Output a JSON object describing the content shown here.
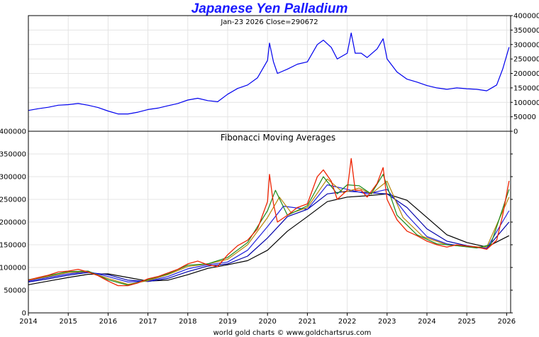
{
  "title": "Japanese Yen Palladium",
  "footer": "world gold charts © www.goldchartsrus.com",
  "chart_data": [
    {
      "type": "line",
      "subtitle": "Jan-23  2026   Close=290672",
      "y_ticks": [
        "400000",
        "350000",
        "300000",
        "250000",
        "200000",
        "150000",
        "100000",
        "50000",
        "0"
      ],
      "ylim": [
        0,
        400000
      ],
      "xlim": [
        2014.0,
        2026.1
      ],
      "grid": true,
      "series": [
        {
          "color": "#0000ee",
          "x": [
            2014.0,
            2014.25,
            2014.5,
            2014.75,
            2015.0,
            2015.25,
            2015.5,
            2015.75,
            2016.0,
            2016.25,
            2016.5,
            2016.75,
            2017.0,
            2017.25,
            2017.5,
            2017.75,
            2018.0,
            2018.25,
            2018.5,
            2018.75,
            2019.0,
            2019.25,
            2019.5,
            2019.75,
            2020.0,
            2020.05,
            2020.15,
            2020.25,
            2020.5,
            2020.75,
            2021.0,
            2021.25,
            2021.4,
            2021.6,
            2021.75,
            2022.0,
            2022.1,
            2022.2,
            2022.35,
            2022.5,
            2022.75,
            2022.9,
            2023.0,
            2023.25,
            2023.5,
            2023.75,
            2024.0,
            2024.25,
            2024.5,
            2024.75,
            2025.0,
            2025.25,
            2025.5,
            2025.75,
            2025.9,
            2026.06
          ],
          "y": [
            72000,
            78000,
            83000,
            90000,
            92000,
            96000,
            90000,
            82000,
            70000,
            60000,
            60000,
            66000,
            75000,
            80000,
            88000,
            96000,
            108000,
            114000,
            106000,
            102000,
            128000,
            148000,
            160000,
            185000,
            245000,
            305000,
            240000,
            200000,
            215000,
            232000,
            240000,
            300000,
            315000,
            290000,
            250000,
            270000,
            340000,
            270000,
            270000,
            255000,
            285000,
            320000,
            250000,
            205000,
            180000,
            170000,
            158000,
            150000,
            145000,
            150000,
            147000,
            145000,
            140000,
            160000,
            215000,
            290672
          ]
        }
      ]
    },
    {
      "type": "line",
      "subtitle": "Fibonacci Moving Averages",
      "y_ticks": [
        "400000",
        "350000",
        "300000",
        "250000",
        "200000",
        "150000",
        "100000",
        "50000",
        "0"
      ],
      "ylim": [
        0,
        400000
      ],
      "xlim": [
        2014.0,
        2026.1
      ],
      "x_ticks": [
        "2014",
        "2015",
        "2016",
        "2017",
        "2018",
        "2019",
        "2020",
        "2021",
        "2022",
        "2023",
        "2024",
        "2025",
        "2026"
      ],
      "grid": true,
      "series": [
        {
          "color": "#ee2200",
          "x": [
            2014.0,
            2014.25,
            2014.5,
            2014.75,
            2015.0,
            2015.25,
            2015.5,
            2015.75,
            2016.0,
            2016.25,
            2016.5,
            2016.75,
            2017.0,
            2017.25,
            2017.5,
            2017.75,
            2018.0,
            2018.25,
            2018.5,
            2018.75,
            2019.0,
            2019.25,
            2019.5,
            2019.75,
            2020.0,
            2020.05,
            2020.15,
            2020.25,
            2020.5,
            2020.75,
            2021.0,
            2021.25,
            2021.4,
            2021.6,
            2021.75,
            2022.0,
            2022.1,
            2022.2,
            2022.35,
            2022.5,
            2022.75,
            2022.9,
            2023.0,
            2023.25,
            2023.5,
            2023.75,
            2024.0,
            2024.25,
            2024.5,
            2024.75,
            2025.0,
            2025.25,
            2025.5,
            2025.75,
            2025.9,
            2026.06
          ],
          "y": [
            72000,
            78000,
            83000,
            90000,
            92000,
            96000,
            90000,
            82000,
            70000,
            60000,
            60000,
            66000,
            75000,
            80000,
            88000,
            96000,
            108000,
            114000,
            106000,
            102000,
            128000,
            148000,
            160000,
            185000,
            245000,
            305000,
            240000,
            200000,
            215000,
            232000,
            240000,
            300000,
            315000,
            290000,
            250000,
            270000,
            340000,
            270000,
            270000,
            255000,
            285000,
            320000,
            250000,
            205000,
            180000,
            170000,
            158000,
            150000,
            145000,
            150000,
            147000,
            145000,
            140000,
            160000,
            215000,
            290672
          ]
        },
        {
          "color": "#1a8a1a",
          "x": [
            2014.0,
            2014.5,
            2015.0,
            2015.5,
            2016.0,
            2016.5,
            2017.0,
            2017.5,
            2018.0,
            2018.5,
            2019.0,
            2019.5,
            2020.0,
            2020.2,
            2020.5,
            2021.0,
            2021.4,
            2021.75,
            2022.0,
            2022.3,
            2022.6,
            2022.9,
            2023.25,
            2023.75,
            2024.25,
            2024.75,
            2025.25,
            2025.6,
            2026.06
          ],
          "y": [
            73000,
            82000,
            91000,
            92000,
            73000,
            61000,
            73000,
            86000,
            105000,
            108000,
            122000,
            155000,
            225000,
            270000,
            215000,
            236000,
            300000,
            262000,
            282000,
            280000,
            262000,
            305000,
            215000,
            172000,
            152000,
            148000,
            143000,
            150000,
            272000
          ]
        },
        {
          "color": "#b8860b",
          "x": [
            2014.0,
            2014.5,
            2015.0,
            2015.5,
            2016.0,
            2016.5,
            2017.0,
            2017.5,
            2018.0,
            2018.5,
            2019.0,
            2019.5,
            2020.0,
            2020.3,
            2020.6,
            2021.0,
            2021.5,
            2021.9,
            2022.3,
            2022.6,
            2023.0,
            2023.4,
            2023.9,
            2024.5,
            2025.0,
            2025.5,
            2026.06
          ],
          "y": [
            72000,
            80000,
            89000,
            91000,
            76000,
            63000,
            71000,
            84000,
            102000,
            108000,
            118000,
            150000,
            210000,
            255000,
            220000,
            232000,
            295000,
            265000,
            275000,
            262000,
            290000,
            210000,
            168000,
            150000,
            146000,
            145000,
            255000
          ]
        },
        {
          "color": "#2222dd",
          "x": [
            2014.0,
            2014.5,
            2015.0,
            2015.5,
            2016.0,
            2016.5,
            2017.0,
            2017.5,
            2018.0,
            2018.5,
            2019.0,
            2019.5,
            2020.0,
            2020.4,
            2021.0,
            2021.5,
            2022.0,
            2022.5,
            2023.0,
            2023.5,
            2024.0,
            2024.5,
            2025.0,
            2025.5,
            2026.06
          ],
          "y": [
            70000,
            78000,
            86000,
            91000,
            80000,
            68000,
            70000,
            80000,
            97000,
            106000,
            112000,
            138000,
            190000,
            235000,
            228000,
            282000,
            272000,
            262000,
            272000,
            215000,
            168000,
            152000,
            146000,
            142000,
            225000
          ]
        },
        {
          "color": "#0000aa",
          "x": [
            2014.0,
            2014.5,
            2015.0,
            2015.5,
            2016.0,
            2016.5,
            2017.0,
            2017.5,
            2018.0,
            2018.5,
            2019.0,
            2019.5,
            2020.0,
            2020.5,
            2021.0,
            2021.5,
            2022.0,
            2022.5,
            2023.0,
            2023.5,
            2024.0,
            2024.5,
            2025.0,
            2025.5,
            2026.06
          ],
          "y": [
            68000,
            75000,
            83000,
            89000,
            84000,
            72000,
            69000,
            76000,
            91000,
            103000,
            108000,
            125000,
            165000,
            212000,
            228000,
            262000,
            268000,
            265000,
            262000,
            232000,
            185000,
            158000,
            148000,
            142000,
            200000
          ]
        },
        {
          "color": "#000000",
          "x": [
            2014.0,
            2014.5,
            2015.0,
            2015.5,
            2016.0,
            2016.5,
            2017.0,
            2017.5,
            2018.0,
            2018.5,
            2019.0,
            2019.5,
            2020.0,
            2020.5,
            2021.0,
            2021.5,
            2022.0,
            2022.5,
            2023.0,
            2023.5,
            2024.0,
            2024.5,
            2025.0,
            2025.5,
            2026.06
          ],
          "y": [
            62000,
            70000,
            78000,
            85000,
            86000,
            78000,
            70000,
            72000,
            84000,
            98000,
            106000,
            115000,
            138000,
            180000,
            212000,
            245000,
            255000,
            258000,
            262000,
            248000,
            210000,
            172000,
            155000,
            145000,
            170000
          ]
        }
      ]
    }
  ]
}
